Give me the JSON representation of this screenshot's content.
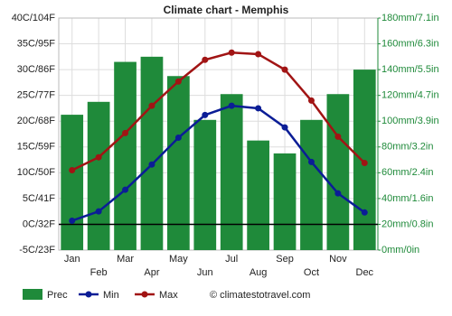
{
  "chart_data": {
    "type": "combo",
    "title": "Climate chart - Memphis",
    "categories": [
      "Jan",
      "Feb",
      "Mar",
      "Apr",
      "May",
      "Jun",
      "Jul",
      "Aug",
      "Sep",
      "Oct",
      "Nov",
      "Dec"
    ],
    "series": [
      {
        "name": "Prec",
        "type": "bar",
        "axis": "y2",
        "color": "#1f8a3a",
        "values": [
          105,
          115,
          146,
          150,
          135,
          101,
          121,
          85,
          75,
          101,
          121,
          140
        ]
      },
      {
        "name": "Min",
        "type": "line",
        "color": "#0b1d96",
        "values": [
          0.7,
          2.5,
          6.7,
          11.6,
          16.8,
          21.2,
          23,
          22.5,
          18.8,
          12.1,
          6,
          2.3
        ]
      },
      {
        "name": "Max",
        "type": "line",
        "color": "#a11414",
        "values": [
          10.5,
          13,
          17.7,
          23,
          27.7,
          31.9,
          33.3,
          33,
          30,
          24,
          17,
          11.9
        ]
      }
    ],
    "ylim": [
      -5,
      40
    ],
    "yticks": [
      {
        "value": -5,
        "label": "-5C/23F"
      },
      {
        "value": 0,
        "label": "0C/32F"
      },
      {
        "value": 5,
        "label": "5C/41F"
      },
      {
        "value": 10,
        "label": "10C/50F"
      },
      {
        "value": 15,
        "label": "15C/59F"
      },
      {
        "value": 20,
        "label": "20C/68F"
      },
      {
        "value": 25,
        "label": "25C/77F"
      },
      {
        "value": 30,
        "label": "30C/86F"
      },
      {
        "value": 35,
        "label": "35C/95F"
      },
      {
        "value": 40,
        "label": "40C/104F"
      }
    ],
    "y2lim": [
      0,
      180
    ],
    "y2ticks": [
      {
        "value": 0,
        "label": "0mm/0in"
      },
      {
        "value": 20,
        "label": "20mm/0.8in"
      },
      {
        "value": 40,
        "label": "40mm/1.6in"
      },
      {
        "value": 60,
        "label": "60mm/2.4in"
      },
      {
        "value": 80,
        "label": "80mm/3.2in"
      },
      {
        "value": 100,
        "label": "100mm/3.9in"
      },
      {
        "value": 120,
        "label": "120mm/4.7in"
      },
      {
        "value": 140,
        "label": "140mm/5.5in"
      },
      {
        "value": 160,
        "label": "160mm/6.3in"
      },
      {
        "value": 180,
        "label": "180mm/7.1in"
      }
    ],
    "grid": true,
    "watermark": "© climatestotravel.com"
  }
}
